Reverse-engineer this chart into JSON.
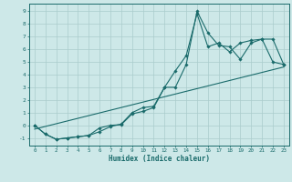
{
  "xlabel": "Humidex (Indice chaleur)",
  "background_color": "#cde8e8",
  "line_color": "#1a6b6b",
  "grid_color": "#aacccc",
  "xlim": [
    -0.5,
    23.5
  ],
  "ylim": [
    -1.6,
    9.6
  ],
  "yticks": [
    -1,
    0,
    1,
    2,
    3,
    4,
    5,
    6,
    7,
    8,
    9
  ],
  "xticks": [
    0,
    1,
    2,
    3,
    4,
    5,
    6,
    7,
    8,
    9,
    10,
    11,
    12,
    13,
    14,
    15,
    16,
    17,
    18,
    19,
    20,
    21,
    22,
    23
  ],
  "line1_x": [
    0,
    1,
    2,
    3,
    4,
    5,
    6,
    7,
    8,
    9,
    10,
    11,
    12,
    13,
    14,
    15,
    16,
    17,
    18,
    19,
    20,
    21,
    22,
    23
  ],
  "line1_y": [
    0.0,
    -0.7,
    -1.1,
    -1.0,
    -0.9,
    -0.8,
    -0.5,
    -0.1,
    0.1,
    1.0,
    1.4,
    1.5,
    3.0,
    3.0,
    4.8,
    9.0,
    7.3,
    6.3,
    6.2,
    5.2,
    6.5,
    6.8,
    6.8,
    4.8
  ],
  "line2_x": [
    0,
    1,
    2,
    3,
    4,
    5,
    6,
    7,
    8,
    9,
    10,
    11,
    12,
    13,
    14,
    15,
    16,
    17,
    18,
    19,
    20,
    21,
    22,
    23
  ],
  "line2_y": [
    0.0,
    -0.7,
    -1.1,
    -1.0,
    -0.9,
    -0.8,
    -0.2,
    0.0,
    0.05,
    0.9,
    1.1,
    1.4,
    3.0,
    4.3,
    5.5,
    8.8,
    6.2,
    6.5,
    5.8,
    6.5,
    6.7,
    6.8,
    5.0,
    4.8
  ],
  "line3_x": [
    0,
    23
  ],
  "line3_y": [
    -0.3,
    4.6
  ]
}
